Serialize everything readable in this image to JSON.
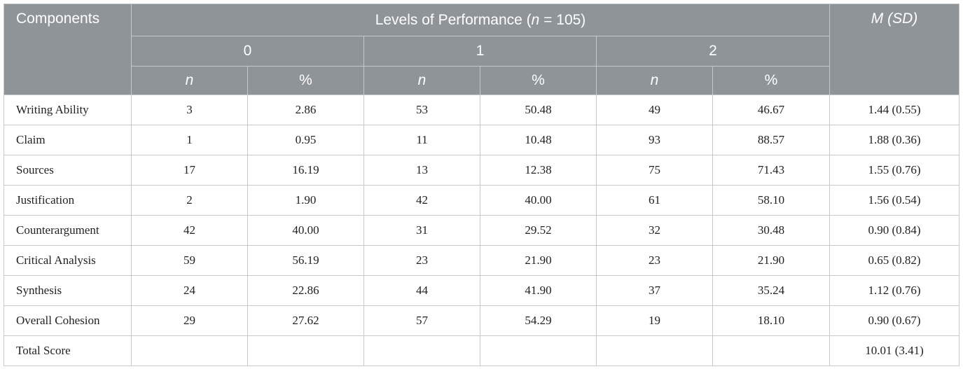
{
  "header": {
    "components": "Components",
    "levels_prefix": "Levels of Performance (",
    "levels_n": "n",
    "levels_suffix": " = 105)",
    "msd": "M (SD)",
    "levels": [
      "0",
      "1",
      "2"
    ],
    "sub_n": "n",
    "sub_pct": "%"
  },
  "rows": [
    {
      "label": "Writing Ability",
      "cells": [
        "3",
        "2.86",
        "53",
        "50.48",
        "49",
        "46.67",
        "1.44 (0.55)"
      ]
    },
    {
      "label": "Claim",
      "cells": [
        "1",
        "0.95",
        "11",
        "10.48",
        "93",
        "88.57",
        "1.88 (0.36)"
      ]
    },
    {
      "label": "Sources",
      "cells": [
        "17",
        "16.19",
        "13",
        "12.38",
        "75",
        "71.43",
        "1.55 (0.76)"
      ]
    },
    {
      "label": "Justification",
      "cells": [
        "2",
        "1.90",
        "42",
        "40.00",
        "61",
        "58.10",
        "1.56 (0.54)"
      ]
    },
    {
      "label": "Counterargument",
      "cells": [
        "42",
        "40.00",
        "31",
        "29.52",
        "32",
        "30.48",
        "0.90 (0.84)"
      ]
    },
    {
      "label": "Critical Analysis",
      "cells": [
        "59",
        "56.19",
        "23",
        "21.90",
        "23",
        "21.90",
        "0.65 (0.82)"
      ]
    },
    {
      "label": "Synthesis",
      "cells": [
        "24",
        "22.86",
        "44",
        "41.90",
        "37",
        "35.24",
        "1.12 (0.76)"
      ]
    },
    {
      "label": "Overall Cohesion",
      "cells": [
        "29",
        "27.62",
        "57",
        "54.29",
        "19",
        "18.10",
        "0.90 (0.67)"
      ]
    },
    {
      "label": "Total Score",
      "cells": [
        "",
        "",
        "",
        "",
        "",
        "",
        "10.01 (3.41)"
      ]
    }
  ]
}
